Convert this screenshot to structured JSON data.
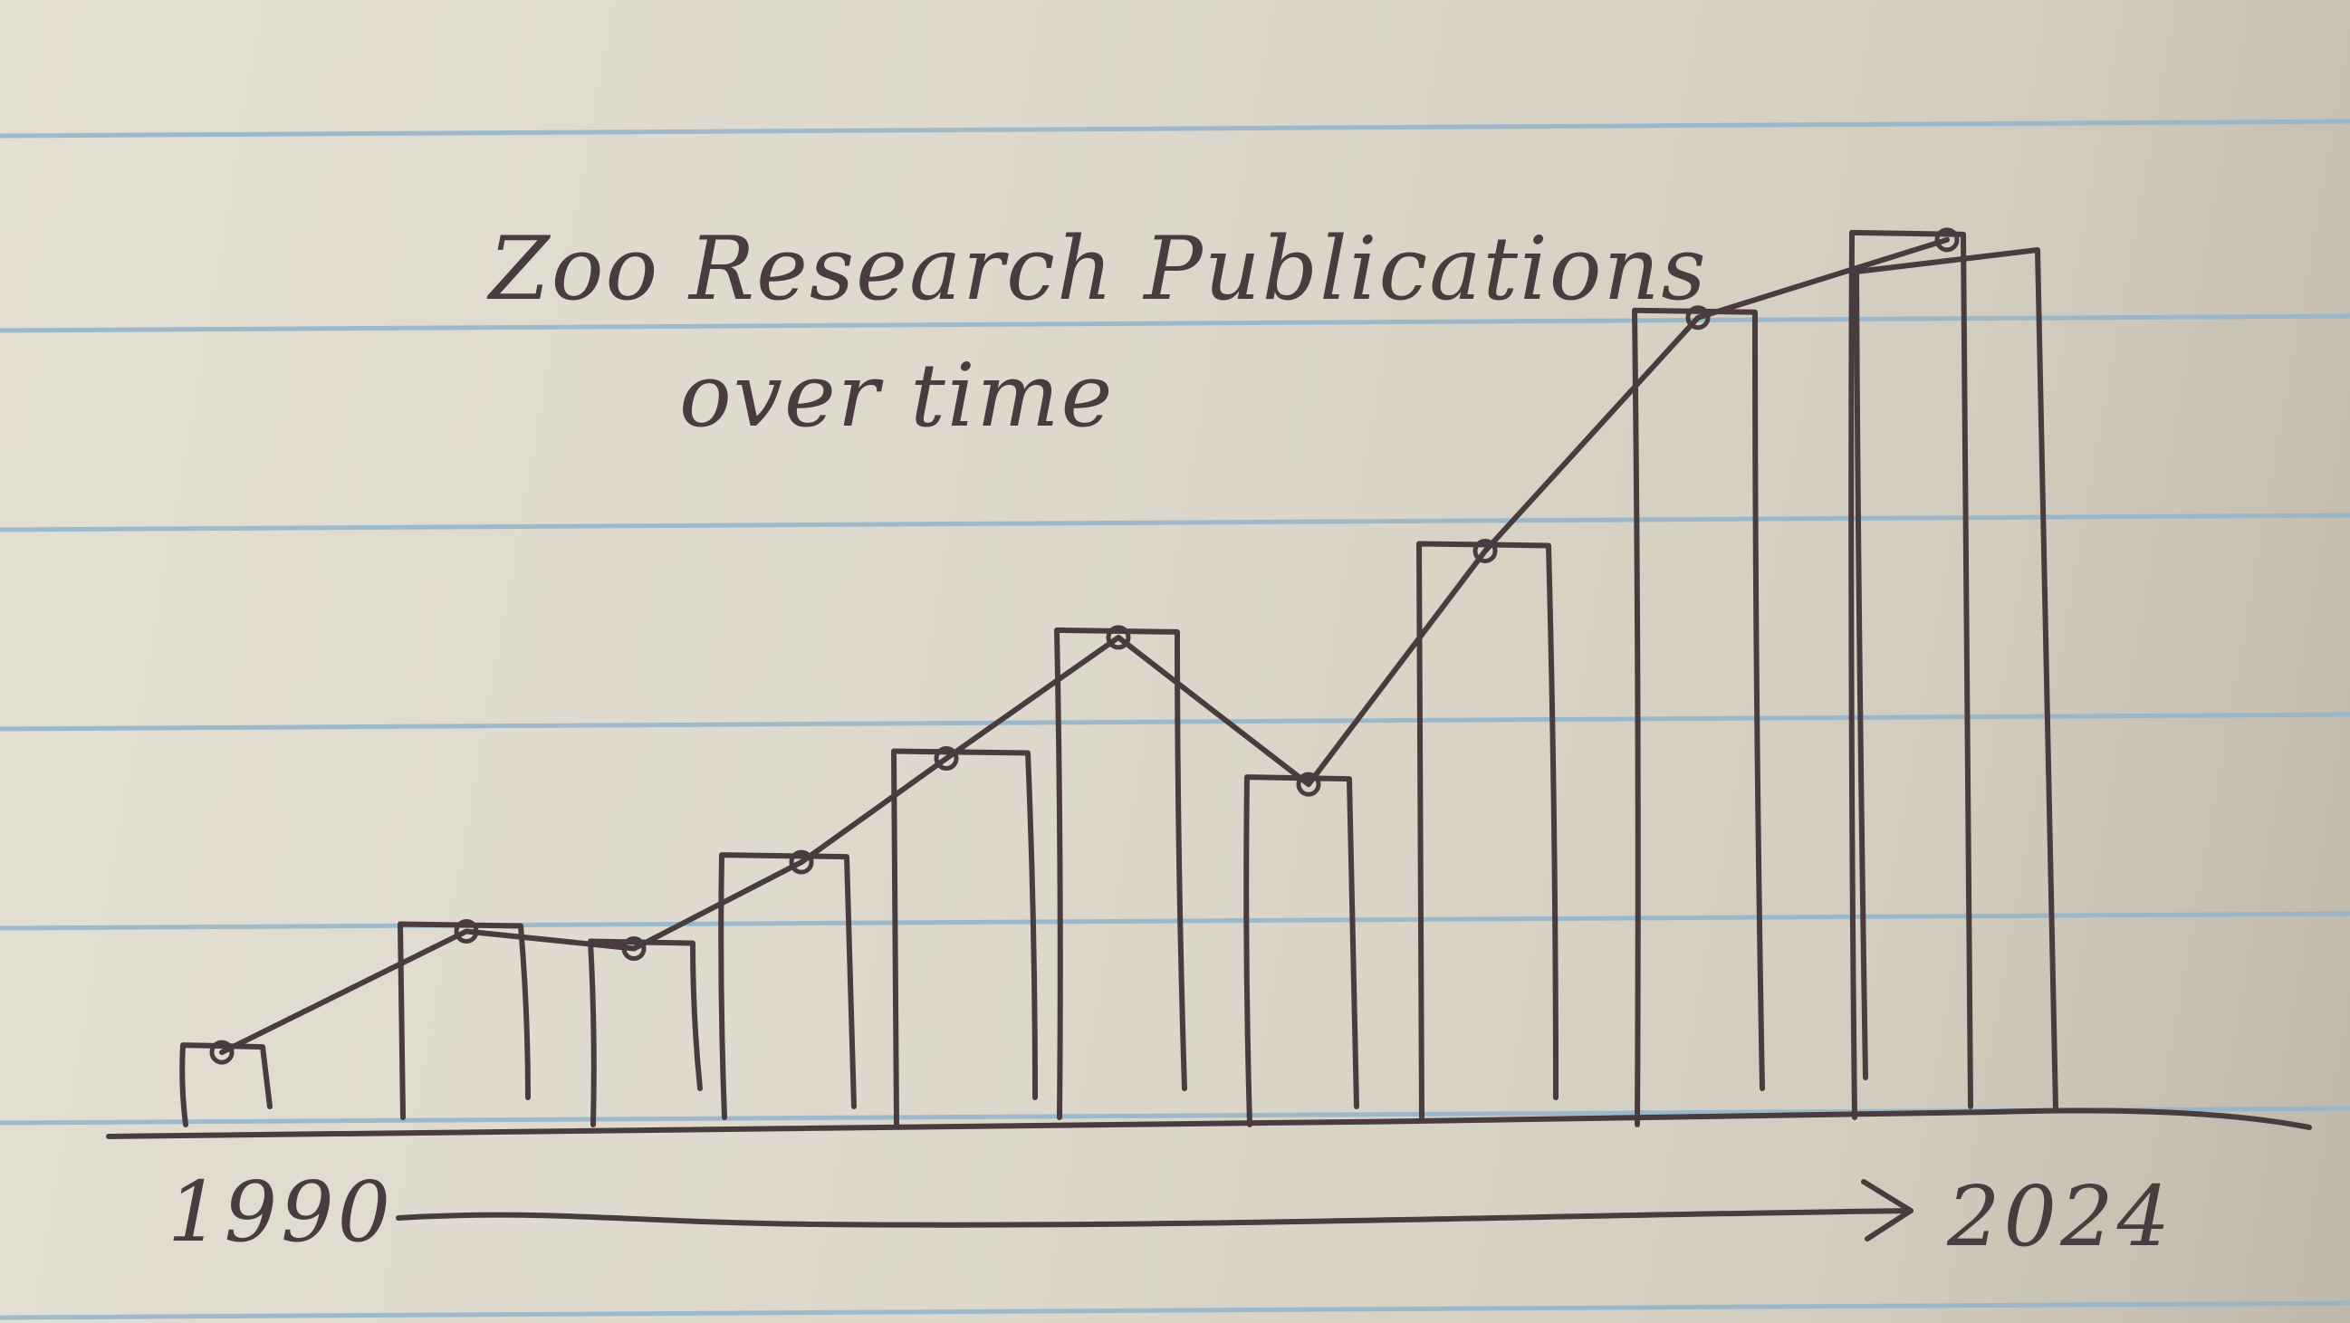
{
  "paper": {
    "line_color": "#8fb4cc",
    "ink_color": "#4a3c3e"
  },
  "title": {
    "line1": "Zoo Research Publications",
    "line2": "over time"
  },
  "axis": {
    "start_label": "1990",
    "end_label": "2024"
  },
  "chart_data": {
    "type": "bar",
    "title": "Zoo Research Publications over time",
    "xlabel": "",
    "ylabel": "",
    "x_start": "1990",
    "x_end": "2024",
    "categories": [
      "",
      "",
      "",
      "",
      "",
      "",
      "",
      "",
      "",
      "",
      ""
    ],
    "values": [
      9,
      23,
      21,
      31,
      43,
      57,
      40,
      67,
      94,
      103,
      0
    ],
    "trend_line": [
      9,
      23,
      21,
      31,
      43,
      57,
      40,
      67,
      94,
      103
    ],
    "ylim": [
      0,
      110
    ],
    "grid": false,
    "legend": "none"
  }
}
